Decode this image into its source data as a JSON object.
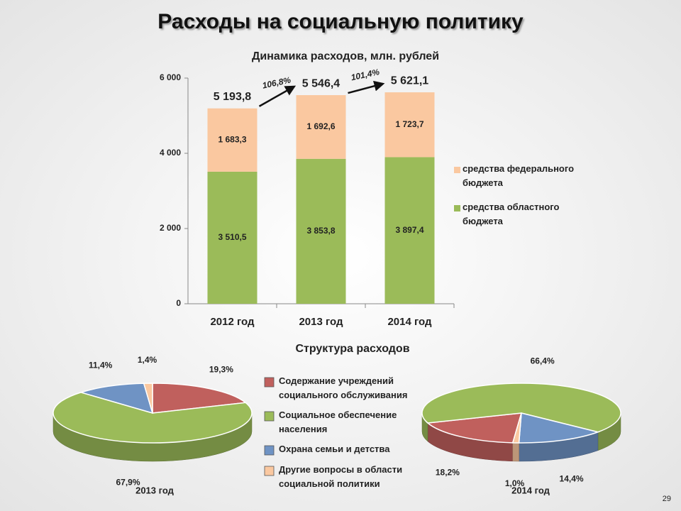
{
  "title": "Расходы на социальную политику",
  "page_number": 29,
  "chart_data": [
    {
      "type": "bar",
      "stacked": true,
      "title": "Динамика расходов, млн. рублей",
      "categories": [
        "2012 год",
        "2013 год",
        "2014 год"
      ],
      "series": [
        {
          "name": "средства областного бюджета",
          "color": "#9bbb59",
          "values": [
            3510.5,
            3853.8,
            3897.4
          ],
          "value_labels": [
            "3 510,5",
            "3 853,8",
            "3 897,4"
          ]
        },
        {
          "name": "средства федерального бюджета",
          "color": "#fac8a0",
          "values": [
            1683.3,
            1692.6,
            1723.7
          ],
          "value_labels": [
            "1 683,3",
            "1 692,6",
            "1 723,7"
          ]
        }
      ],
      "totals": [
        5193.8,
        5546.4,
        5621.1
      ],
      "total_labels": [
        "5 193,8",
        "5 546,4",
        "5 621,1"
      ],
      "growth": [
        106.8,
        101.4
      ],
      "growth_labels": [
        "106,8%",
        "101,4%"
      ],
      "ylim": [
        0,
        6000
      ],
      "yticks": [
        0,
        {
          "value": 2000,
          "label": "2 000"
        },
        {
          "value": 4000,
          "label": "4 000"
        },
        {
          "value": 6000,
          "label": "6 000"
        }
      ]
    },
    {
      "type": "pie",
      "title": "Структура расходов",
      "subtitle": "2013 год",
      "categories": [
        "Содержание учреждений социального обслуживания",
        "Социальное обеспечение населения",
        "Охрана семьи и детства",
        "Другие вопросы в области социальной политики"
      ],
      "colors": [
        "#c0605d",
        "#9bbb59",
        "#6f93c4",
        "#fac8a0"
      ],
      "values": [
        19.3,
        67.9,
        11.4,
        1.4
      ],
      "value_labels": [
        "19,3%",
        "67,9%",
        "11,4%",
        "1,4%"
      ],
      "start_angle": -90
    },
    {
      "type": "pie",
      "subtitle": "2014 год",
      "colors": [
        "#c0605d",
        "#9bbb59",
        "#6f93c4",
        "#fac8a0"
      ],
      "values": [
        18.2,
        66.4,
        14.4,
        1.0
      ],
      "value_labels": [
        "18,2%",
        "66,4%",
        "14,4%",
        "1,0%"
      ],
      "start_angle": 95
    }
  ]
}
